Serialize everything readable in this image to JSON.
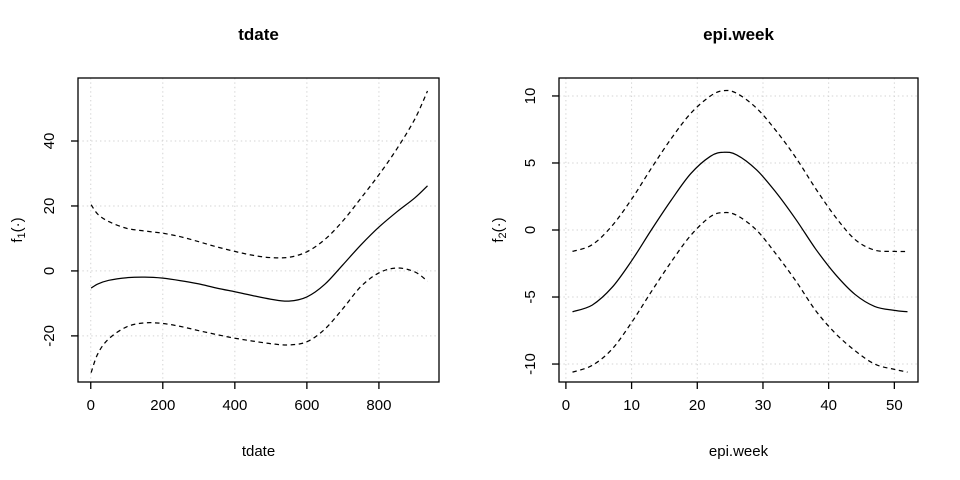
{
  "page": {
    "background": "#ffffff",
    "text_color": "#000000"
  },
  "chart_data": [
    {
      "type": "line",
      "title": "tdate",
      "xlabel": "tdate",
      "ylabel": {
        "base": "f",
        "sub": "1",
        "args": "(·)"
      },
      "xlim": [
        -35.4,
        966.8
      ],
      "ylim": [
        -34.2,
        59.4
      ],
      "xticks": [
        0,
        200,
        400,
        600,
        800
      ],
      "yticks": [
        -20,
        0,
        20,
        40
      ],
      "grid": true,
      "legend": "none",
      "colors": {
        "line": "#000000",
        "grid": "#d3d3d3"
      },
      "x": [
        1,
        20,
        50,
        100,
        150,
        200,
        250,
        300,
        350,
        400,
        450,
        500,
        550,
        600,
        650,
        700,
        750,
        800,
        850,
        900,
        935
      ],
      "series": [
        {
          "name": "fit",
          "style": "solid",
          "values": [
            -5.3,
            -4.0,
            -2.9,
            -2.1,
            -1.9,
            -2.2,
            -3.0,
            -4.0,
            -5.3,
            -6.4,
            -7.6,
            -8.7,
            -9.3,
            -8.0,
            -4.1,
            1.9,
            8.0,
            13.5,
            18.2,
            22.5,
            26.2
          ]
        },
        {
          "name": "upper-ci",
          "style": "dashed",
          "values": [
            20.4,
            17.4,
            15.2,
            13.1,
            12.3,
            11.6,
            10.5,
            9.0,
            7.4,
            6.0,
            4.8,
            4.1,
            4.2,
            5.9,
            9.7,
            15.4,
            22.4,
            29.6,
            37.6,
            46.8,
            55.4
          ]
        },
        {
          "name": "lower-ci",
          "style": "dashed",
          "values": [
            -31.3,
            -25.4,
            -20.9,
            -17.2,
            -16.0,
            -16.2,
            -17.1,
            -18.4,
            -19.6,
            -20.7,
            -21.6,
            -22.4,
            -22.8,
            -21.8,
            -17.9,
            -11.6,
            -4.8,
            -0.6,
            0.9,
            -0.3,
            -3.2
          ]
        }
      ]
    },
    {
      "type": "line",
      "title": "epi.week",
      "xlabel": "epi.week",
      "ylabel": {
        "base": "f",
        "sub": "2",
        "args": "(·)"
      },
      "xlim": [
        -1.05,
        53.6
      ],
      "ylim": [
        -11.34,
        11.34
      ],
      "xticks": [
        0,
        10,
        20,
        30,
        40,
        50
      ],
      "yticks": [
        -10,
        -5,
        0,
        5,
        10
      ],
      "grid": true,
      "legend": "none",
      "colors": {
        "line": "#000000",
        "grid": "#d3d3d3"
      },
      "x": [
        1,
        4,
        7,
        10,
        13,
        16,
        19,
        22,
        24,
        26,
        29,
        32,
        35,
        38,
        41,
        44,
        47,
        50,
        52
      ],
      "series": [
        {
          "name": "fit",
          "style": "solid",
          "values": [
            -6.1,
            -5.6,
            -4.3,
            -2.3,
            0.0,
            2.2,
            4.2,
            5.5,
            5.8,
            5.6,
            4.5,
            2.8,
            0.8,
            -1.4,
            -3.3,
            -4.8,
            -5.7,
            -6.0,
            -6.1
          ]
        },
        {
          "name": "upper-ci",
          "style": "dashed",
          "values": [
            -1.6,
            -1.1,
            0.3,
            2.3,
            4.6,
            6.8,
            8.7,
            10.0,
            10.4,
            10.2,
            9.1,
            7.4,
            5.4,
            3.1,
            1.0,
            -0.7,
            -1.5,
            -1.6,
            -1.6
          ]
        },
        {
          "name": "lower-ci",
          "style": "dashed",
          "values": [
            -10.6,
            -10.1,
            -8.9,
            -6.9,
            -4.6,
            -2.4,
            -0.4,
            1.0,
            1.3,
            1.1,
            0.0,
            -1.8,
            -3.8,
            -6.0,
            -7.7,
            -9.0,
            -10.0,
            -10.4,
            -10.6
          ]
        }
      ]
    }
  ]
}
